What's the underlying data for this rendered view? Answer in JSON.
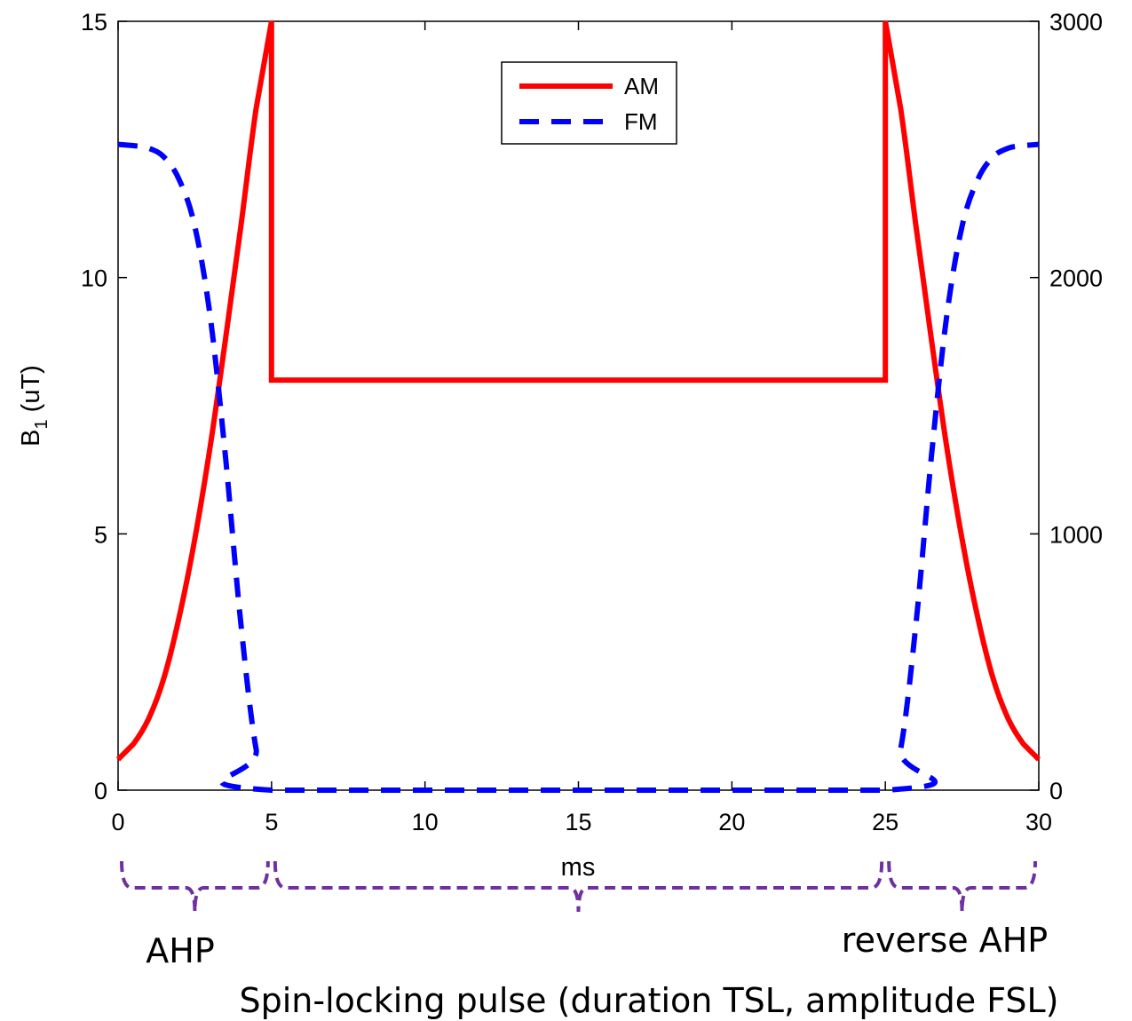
{
  "chart_data": {
    "type": "line",
    "title": "",
    "xlabel": "ms",
    "ylabel_main": "B",
    "ylabel_sub": "1",
    "ylabel_unit": " (uT)",
    "xlim": [
      0,
      30
    ],
    "ylim_left": [
      0,
      15
    ],
    "ylim_right": [
      0,
      3000
    ],
    "x_ticks": [
      0,
      5,
      10,
      15,
      20,
      25,
      30
    ],
    "x_tick_labels": [
      "0",
      "5",
      "10",
      "15",
      "20",
      "25",
      "30"
    ],
    "y_left_ticks": [
      0,
      5,
      10,
      15
    ],
    "y_left_tick_labels": [
      "0",
      "5",
      "10",
      "15"
    ],
    "y_right_ticks": [
      0,
      1000,
      2000,
      3000
    ],
    "y_right_tick_labels": [
      "0",
      "1000",
      "2000",
      "3000"
    ],
    "grid": false,
    "legend_position": "top-center",
    "series": [
      {
        "name": "AM",
        "axis": "left",
        "color": "#ff0000",
        "style": "solid",
        "x": [
          0,
          0.5,
          1.0,
          1.5,
          2.0,
          2.5,
          3.0,
          3.5,
          4.0,
          4.5,
          5.0,
          5.0,
          25.0,
          25.0,
          25.5,
          26.0,
          26.5,
          27.0,
          27.5,
          28.0,
          28.5,
          29.0,
          29.5,
          30.0
        ],
        "y": [
          0.6,
          0.9,
          1.4,
          2.2,
          3.4,
          4.9,
          6.7,
          8.8,
          11.0,
          13.3,
          15.0,
          8.0,
          8.0,
          15.0,
          13.3,
          11.0,
          8.8,
          6.7,
          4.9,
          3.4,
          2.2,
          1.4,
          0.9,
          0.6
        ]
      },
      {
        "name": "FM",
        "axis": "right",
        "color": "#0000ff",
        "style": "dashed",
        "x": [
          0,
          0.5,
          1.0,
          1.5,
          2.0,
          2.5,
          3.0,
          3.5,
          4.0,
          4.5,
          5.0,
          25.0,
          25.5,
          26.0,
          26.5,
          27.0,
          27.5,
          28.0,
          28.5,
          29.0,
          29.5,
          30.0
        ],
        "y": [
          2520,
          2515,
          2505,
          2470,
          2380,
          2200,
          1850,
          1300,
          650,
          160,
          0,
          0,
          160,
          650,
          1300,
          1850,
          2200,
          2380,
          2470,
          2505,
          2515,
          2520
        ]
      }
    ],
    "annotations": {
      "ahp": {
        "label": "AHP",
        "x_range": [
          0,
          5
        ]
      },
      "spin_lock": {
        "label": "Spin-locking pulse (duration TSL, amplitude FSL)",
        "x_range": [
          5,
          25
        ]
      },
      "reverse_ahp": {
        "label": "reverse AHP",
        "x_range": [
          25,
          30
        ]
      },
      "brace_color": "#7030a0"
    }
  }
}
